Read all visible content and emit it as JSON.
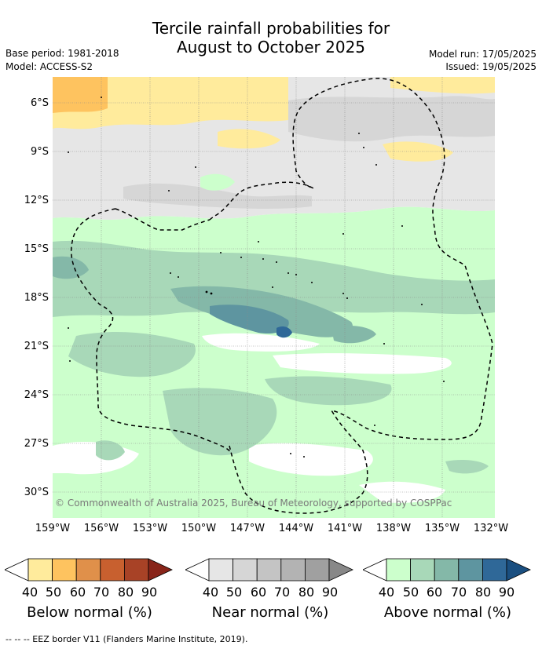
{
  "title_line1": "Tercile rainfall probabilities for",
  "title_line2": "August to October 2025",
  "base_period": "Base period: 1981-2018",
  "model": "Model: ACCESS-S2",
  "model_run": "Model run: 17/05/2025",
  "issued": "Issued: 19/05/2025",
  "lat_labels": [
    "6°S",
    "9°S",
    "12°S",
    "15°S",
    "18°S",
    "21°S",
    "24°S",
    "27°S",
    "30°S"
  ],
  "lon_labels": [
    "159°W",
    "156°W",
    "153°W",
    "150°W",
    "147°W",
    "144°W",
    "141°W",
    "138°W",
    "135°W",
    "132°W"
  ],
  "copyright": "© Commonwealth of Australia 2025, Bureau of Meteorology, supported by COSPPac",
  "legends": [
    {
      "title": "Below normal (%)",
      "ticks": [
        "40",
        "50",
        "60",
        "70",
        "80",
        "90"
      ],
      "colors": [
        "#ffffff",
        "#ffeb9c",
        "#fec35f",
        "#e0904a",
        "#c8602f",
        "#a84226",
        "#882419"
      ]
    },
    {
      "title": "Near normal (%)",
      "ticks": [
        "40",
        "50",
        "60",
        "70",
        "80",
        "90"
      ],
      "colors": [
        "#ffffff",
        "#e6e6e6",
        "#d6d6d6",
        "#c4c4c4",
        "#b3b3b3",
        "#a0a0a0",
        "#888888"
      ]
    },
    {
      "title": "Above normal (%)",
      "ticks": [
        "40",
        "50",
        "60",
        "70",
        "80",
        "90"
      ],
      "colors": [
        "#ffffff",
        "#ccffcc",
        "#a8d8b8",
        "#84b8a8",
        "#5e95a0",
        "#2f6898",
        "#1a4f80"
      ]
    }
  ],
  "footnote": "--  --  -- EEZ border V11 (Flanders Marine Institute, 2019)."
}
